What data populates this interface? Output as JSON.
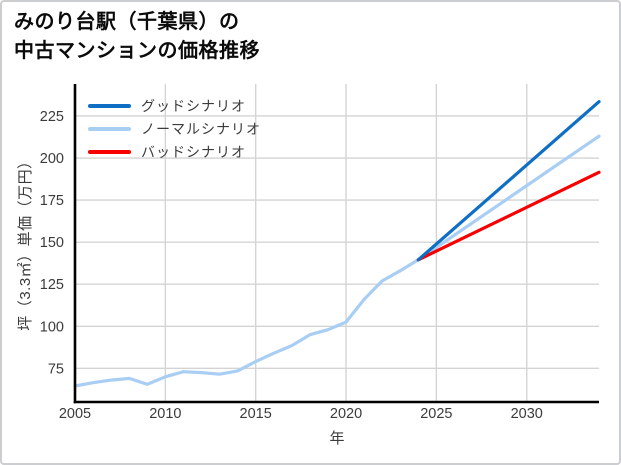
{
  "page": {
    "background": "#ffffff",
    "border_color": "#cbcdd1"
  },
  "chart_data": {
    "type": "line",
    "title_line1": "みのり台駅（千葉県）の",
    "title_line2": "中古マンションの価格推移",
    "xlabel": "年",
    "ylabel": "坪（3.3㎡）単価（万円）",
    "x_ticks": [
      2005,
      2010,
      2015,
      2020,
      2025,
      2030
    ],
    "y_ticks": [
      75,
      100,
      125,
      150,
      175,
      200,
      225
    ],
    "xlim": [
      2005,
      2034
    ],
    "ylim": [
      55,
      244
    ],
    "grid": true,
    "grid_color": "#d4d4d4",
    "spine_color": "#000000",
    "legend_position": "upper-left",
    "legend_frame": false,
    "series": [
      {
        "name": "グッドシナリオ",
        "color": "#0f6fc5",
        "x": [
          2024,
          2034
        ],
        "values": [
          139.5,
          233.5
        ]
      },
      {
        "name": "ノーマルシナリオ",
        "color": "#a9cef4",
        "x": [
          2005,
          2006,
          2007,
          2008,
          2009,
          2010,
          2011,
          2012,
          2013,
          2014,
          2015,
          2016,
          2017,
          2018,
          2019,
          2020,
          2021,
          2022,
          2023,
          2024,
          2034
        ],
        "values": [
          64.5,
          66.5,
          68,
          69,
          65.5,
          70,
          73,
          72.5,
          71.5,
          73.5,
          79,
          84,
          88.5,
          95,
          98,
          102.5,
          116,
          127,
          133,
          139.5,
          213
        ]
      },
      {
        "name": "バッドシナリオ",
        "color": "#f60000",
        "x": [
          2024,
          2034
        ],
        "values": [
          139.5,
          191.5
        ]
      }
    ],
    "forecast_start_year": 2024,
    "forecast_start_value": 139.5
  }
}
